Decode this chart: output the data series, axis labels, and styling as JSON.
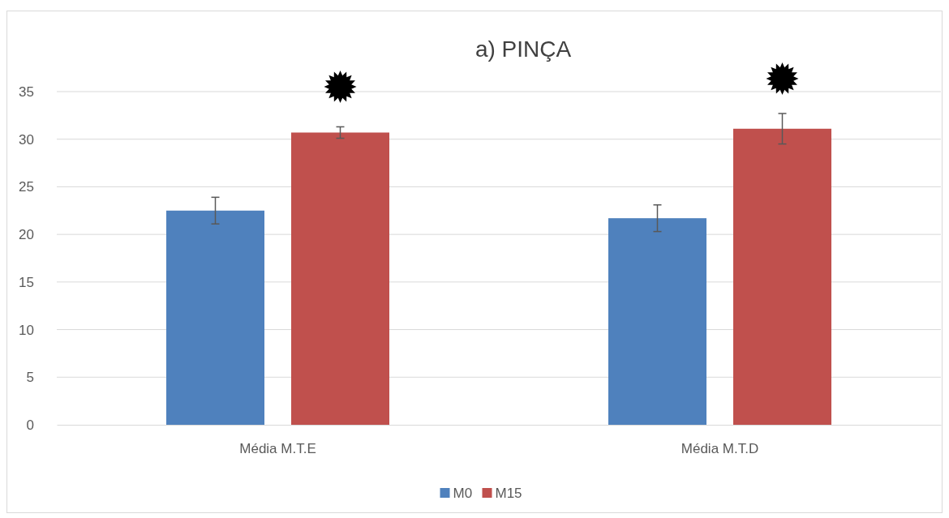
{
  "chart_data": {
    "type": "bar",
    "title": "a) PINÇA",
    "categories": [
      "Média M.T.E",
      "Média M.T.D"
    ],
    "series": [
      {
        "name": "M0",
        "color": "#4f81bd",
        "values": [
          22.5,
          21.7
        ],
        "errors": [
          1.4,
          1.4
        ]
      },
      {
        "name": "M15",
        "color": "#c0504d",
        "values": [
          30.7,
          31.1
        ],
        "errors": [
          0.6,
          1.6
        ]
      }
    ],
    "ylim": [
      0,
      35
    ],
    "yticks": [
      0,
      5,
      10,
      15,
      20,
      25,
      30,
      35
    ],
    "grid": "y",
    "legend": "bottom"
  }
}
